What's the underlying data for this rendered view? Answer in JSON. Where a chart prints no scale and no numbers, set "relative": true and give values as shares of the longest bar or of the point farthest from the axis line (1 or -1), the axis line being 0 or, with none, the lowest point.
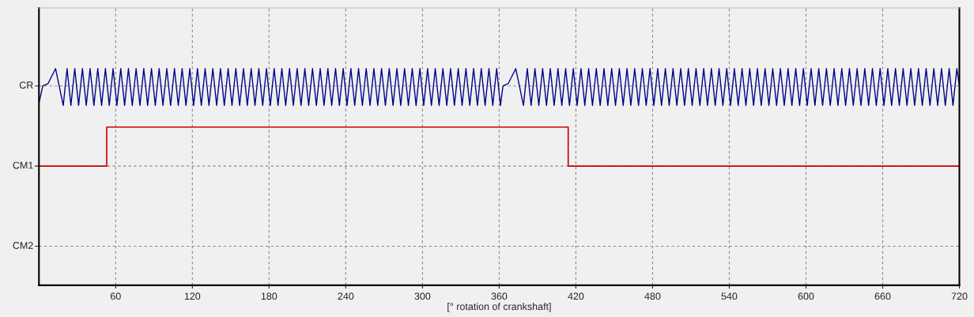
{
  "chart_data": {
    "type": "line",
    "xlabel": "[° rotation of crankshaft]",
    "xlim": [
      0,
      720
    ],
    "xticks": [
      60,
      120,
      180,
      240,
      300,
      360,
      420,
      480,
      540,
      600,
      660,
      720
    ],
    "relative": true,
    "grid": "x",
    "line_style": "solid",
    "ref_lines": [
      {
        "axis": "y",
        "value": 0.92,
        "label": "CR",
        "color": "#888888",
        "line_style": "dashed"
      },
      {
        "axis": "y",
        "value": 0.55,
        "label": "CM1",
        "color": "#888888",
        "line_style": "dashed"
      },
      {
        "axis": "y",
        "value": 0.18,
        "label": "CM2",
        "color": "#888888",
        "line_style": "dashed"
      }
    ],
    "series": [
      {
        "type": "line",
        "color": "#000088",
        "x": [
          0,
          3,
          7,
          13,
          19,
          22,
          25,
          28,
          31,
          34,
          37,
          40,
          43,
          46,
          49,
          52,
          55,
          58,
          61,
          64,
          67,
          70,
          73,
          76,
          79,
          82,
          85,
          88,
          91,
          94,
          97,
          100,
          103,
          106,
          109,
          112,
          115,
          118,
          121,
          124,
          127,
          130,
          133,
          136,
          139,
          142,
          145,
          148,
          151,
          154,
          157,
          160,
          163,
          166,
          169,
          172,
          175,
          178,
          181,
          184,
          187,
          190,
          193,
          196,
          199,
          202,
          205,
          208,
          211,
          214,
          217,
          220,
          223,
          226,
          229,
          232,
          235,
          238,
          241,
          244,
          247,
          250,
          253,
          256,
          259,
          262,
          265,
          268,
          271,
          274,
          277,
          280,
          283,
          286,
          289,
          292,
          295,
          298,
          301,
          304,
          307,
          310,
          313,
          316,
          319,
          322,
          325,
          328,
          331,
          334,
          337,
          340,
          343,
          346,
          349,
          352,
          355,
          358,
          361,
          363,
          367,
          373,
          379,
          382,
          385,
          388,
          391,
          394,
          397,
          400,
          403,
          406,
          409,
          412,
          415,
          418,
          421,
          424,
          427,
          430,
          433,
          436,
          439,
          442,
          445,
          448,
          451,
          454,
          457,
          460,
          463,
          466,
          469,
          472,
          475,
          478,
          481,
          484,
          487,
          490,
          493,
          496,
          499,
          502,
          505,
          508,
          511,
          514,
          517,
          520,
          523,
          526,
          529,
          532,
          535,
          538,
          541,
          544,
          547,
          550,
          553,
          556,
          559,
          562,
          565,
          568,
          571,
          574,
          577,
          580,
          583,
          586,
          589,
          592,
          595,
          598,
          601,
          604,
          607,
          610,
          613,
          616,
          619,
          622,
          625,
          628,
          631,
          634,
          637,
          640,
          643,
          646,
          649,
          652,
          655,
          658,
          661,
          664,
          667,
          670,
          673,
          676,
          679,
          682,
          685,
          688,
          691,
          694,
          697,
          700,
          703,
          706,
          709,
          712,
          715,
          718,
          720
        ],
        "values": [
          0.84,
          0.92,
          0.93,
          1,
          0.83,
          1,
          0.83,
          1,
          0.83,
          1,
          0.83,
          1,
          0.83,
          1,
          0.83,
          1,
          0.83,
          1,
          0.83,
          1,
          0.83,
          1,
          0.83,
          1,
          0.83,
          1,
          0.83,
          1,
          0.83,
          1,
          0.83,
          1,
          0.83,
          1,
          0.83,
          1,
          0.83,
          1,
          0.83,
          1,
          0.83,
          1,
          0.83,
          1,
          0.83,
          1,
          0.83,
          1,
          0.83,
          1,
          0.83,
          1,
          0.83,
          1,
          0.83,
          1,
          0.83,
          1,
          0.83,
          1,
          0.83,
          1,
          0.83,
          1,
          0.83,
          1,
          0.83,
          1,
          0.83,
          1,
          0.83,
          1,
          0.83,
          1,
          0.83,
          1,
          0.83,
          1,
          0.83,
          1,
          0.83,
          1,
          0.83,
          1,
          0.83,
          1,
          0.83,
          1,
          0.83,
          1,
          0.83,
          1,
          0.83,
          1,
          0.83,
          1,
          0.83,
          1,
          0.83,
          1,
          0.83,
          1,
          0.83,
          1,
          0.83,
          1,
          0.83,
          1,
          0.83,
          1,
          0.83,
          1,
          0.83,
          1,
          0.83,
          1,
          0.83,
          1,
          0.83,
          0.92,
          0.93,
          1,
          0.83,
          1,
          0.83,
          1,
          0.83,
          1,
          0.83,
          1,
          0.83,
          1,
          0.83,
          1,
          0.83,
          1,
          0.83,
          1,
          0.83,
          1,
          0.83,
          1,
          0.83,
          1,
          0.83,
          1,
          0.83,
          1,
          0.83,
          1,
          0.83,
          1,
          0.83,
          1,
          0.83,
          1,
          0.83,
          1,
          0.83,
          1,
          0.83,
          1,
          0.83,
          1,
          0.83,
          1,
          0.83,
          1,
          0.83,
          1,
          0.83,
          1,
          0.83,
          1,
          0.83,
          1,
          0.83,
          1,
          0.83,
          1,
          0.83,
          1,
          0.83,
          1,
          0.83,
          1,
          0.83,
          1,
          0.83,
          1,
          0.83,
          1,
          0.83,
          1,
          0.83,
          1,
          0.83,
          1,
          0.83,
          1,
          0.83,
          1,
          0.83,
          1,
          0.83,
          1,
          0.83,
          1,
          0.83,
          1,
          0.83,
          1,
          0.83,
          1,
          0.83,
          1,
          0.83,
          1,
          0.83,
          1,
          0.83,
          1,
          0.83,
          1,
          0.83,
          1,
          0.83,
          1,
          0.83,
          1,
          0.83,
          1,
          0.83,
          1,
          0.83,
          1,
          0.92
        ]
      },
      {
        "type": "step",
        "color": "#cc0000",
        "x": [
          0,
          53,
          414,
          720
        ],
        "values": [
          0.55,
          0.73,
          0.55,
          0.55
        ]
      }
    ]
  }
}
